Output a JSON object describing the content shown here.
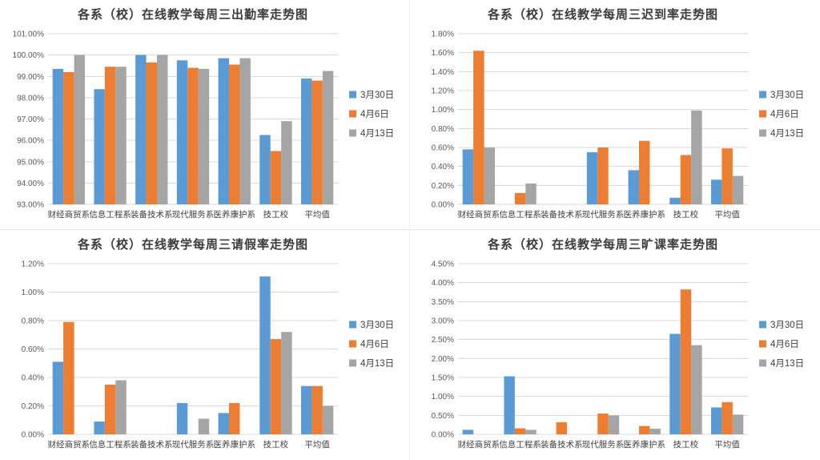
{
  "page": {
    "background": "#ffffff",
    "layout": "2x2-chart-grid"
  },
  "colors": {
    "series_blue": "#5B9BD5",
    "series_orange": "#ED7D31",
    "series_gray": "#A5A5A5",
    "gridline": "#D9D9D9",
    "axis_text": "#595959",
    "category_text": "#404040",
    "title_text": "#3B3B3B"
  },
  "legend": {
    "labels": [
      "3月30日",
      "4月6日",
      "4月13日"
    ],
    "position": "right"
  },
  "chart_data": [
    {
      "type": "bar",
      "title": "各系（校）在线教学每周三出勤率走势图",
      "categories": [
        "财经商贸系",
        "信息工程系",
        "装备技术系",
        "现代服务系",
        "医养康护系",
        "技工校",
        "平均值"
      ],
      "series": [
        {
          "name": "3月30日",
          "color": "#5B9BD5",
          "values": [
            99.35,
            98.4,
            100.0,
            99.75,
            99.85,
            96.25,
            98.9
          ]
        },
        {
          "name": "4月6日",
          "color": "#ED7D31",
          "values": [
            99.2,
            99.45,
            99.65,
            99.4,
            99.55,
            95.5,
            98.8
          ]
        },
        {
          "name": "4月13日",
          "color": "#A5A5A5",
          "values": [
            100.0,
            99.45,
            100.0,
            99.35,
            99.85,
            96.9,
            99.25
          ]
        }
      ],
      "xlabel": "",
      "ylabel": "",
      "ylim": [
        93.0,
        101.0
      ],
      "ystep": 1.0,
      "tick_format": "percent-2dp",
      "grid": true,
      "legend_position": "right"
    },
    {
      "type": "bar",
      "title": "各系（校）在线教学每周三迟到率走势图",
      "categories": [
        "财经商贸系",
        "信息工程系",
        "装备技术系",
        "现代服务系",
        "医养康护系",
        "技工校",
        "平均值"
      ],
      "series": [
        {
          "name": "3月30日",
          "color": "#5B9BD5",
          "values": [
            0.58,
            0.0,
            0.0,
            0.55,
            0.36,
            0.07,
            0.26
          ]
        },
        {
          "name": "4月6日",
          "color": "#ED7D31",
          "values": [
            1.62,
            0.12,
            0.0,
            0.6,
            0.67,
            0.52,
            0.59
          ]
        },
        {
          "name": "4月13日",
          "color": "#A5A5A5",
          "values": [
            0.6,
            0.22,
            0.0,
            0.0,
            0.0,
            0.99,
            0.3
          ]
        }
      ],
      "xlabel": "",
      "ylabel": "",
      "ylim": [
        0.0,
        1.8
      ],
      "ystep": 0.2,
      "tick_format": "percent-2dp",
      "grid": true,
      "legend_position": "right"
    },
    {
      "type": "bar",
      "title": "各系（校）在线教学每周三请假率走势图",
      "categories": [
        "财经商贸系",
        "信息工程系",
        "装备技术系",
        "现代服务系",
        "医养康护系",
        "技工校",
        "平均值"
      ],
      "series": [
        {
          "name": "3月30日",
          "color": "#5B9BD5",
          "values": [
            0.51,
            0.09,
            0.0,
            0.22,
            0.15,
            1.11,
            0.34
          ]
        },
        {
          "name": "4月6日",
          "color": "#ED7D31",
          "values": [
            0.79,
            0.35,
            0.0,
            0.0,
            0.22,
            0.67,
            0.34
          ]
        },
        {
          "name": "4月13日",
          "color": "#A5A5A5",
          "values": [
            0.0,
            0.38,
            0.0,
            0.11,
            0.0,
            0.72,
            0.2
          ]
        }
      ],
      "xlabel": "",
      "ylabel": "",
      "ylim": [
        0.0,
        1.2
      ],
      "ystep": 0.2,
      "tick_format": "percent-2dp",
      "grid": true,
      "legend_position": "right"
    },
    {
      "type": "bar",
      "title": "各系（校）在线教学每周三旷课率走势图",
      "categories": [
        "财经商贸系",
        "信息工程系",
        "装备技术系",
        "现代服务系",
        "医养康护系",
        "技工校",
        "平均值"
      ],
      "series": [
        {
          "name": "3月30日",
          "color": "#5B9BD5",
          "values": [
            0.12,
            1.53,
            0.0,
            0.0,
            0.0,
            2.65,
            0.71
          ]
        },
        {
          "name": "4月6日",
          "color": "#ED7D31",
          "values": [
            0.0,
            0.16,
            0.32,
            0.55,
            0.22,
            3.82,
            0.85
          ]
        },
        {
          "name": "4月13日",
          "color": "#A5A5A5",
          "values": [
            0.0,
            0.12,
            0.0,
            0.5,
            0.15,
            2.35,
            0.52
          ]
        }
      ],
      "xlabel": "",
      "ylabel": "",
      "ylim": [
        0.0,
        4.5
      ],
      "ystep": 0.5,
      "tick_format": "percent-2dp",
      "grid": true,
      "legend_position": "right"
    }
  ]
}
